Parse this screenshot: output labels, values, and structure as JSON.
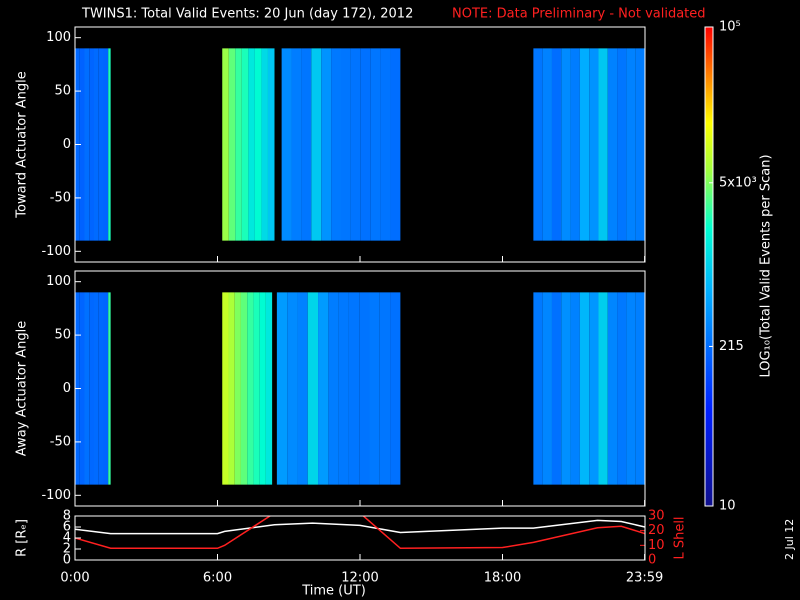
{
  "title": "TWINS1: Total Valid Events: 20 Jun (day 172), 2012",
  "note": "NOTE: Data Preliminary - Not validated",
  "stamp": "2 Jul 12",
  "xaxis": {
    "label": "Time (UT)",
    "lim": [
      0,
      24
    ],
    "ticks": [
      {
        "value": 0,
        "label": "0:00"
      },
      {
        "value": 6,
        "label": "6:00"
      },
      {
        "value": 12,
        "label": "12:00"
      },
      {
        "value": 18,
        "label": "18:00"
      },
      {
        "value": 23.983,
        "label": "23:59"
      }
    ]
  },
  "colorbar": {
    "label": "LOG₁₀(Total Valid Events per Scan)",
    "lim": [
      10,
      100000
    ],
    "log": true,
    "ticks": [
      {
        "value": 10,
        "label": "10"
      },
      {
        "value": 215,
        "label": "215"
      },
      {
        "value": 5000,
        "label": "5x10³"
      },
      {
        "value": 100000,
        "label": "10⁵"
      }
    ]
  },
  "chart_data": [
    {
      "type": "heatmap",
      "ylabel": "Toward Actuator Angle",
      "ylim": [
        -110,
        110
      ],
      "yticks": [
        -100,
        -50,
        0,
        50,
        100
      ],
      "segments": [
        {
          "start": 0,
          "end": 1.4,
          "angle_range": [
            -90,
            90
          ],
          "levels": [
            200,
            180,
            220,
            190,
            210,
            200,
            190
          ]
        },
        {
          "start": 1.4,
          "end": 1.5,
          "angle_range": [
            -90,
            90
          ],
          "levels": [
            2500
          ]
        },
        {
          "start": 6.2,
          "end": 8.4,
          "angle_range": [
            -90,
            90
          ],
          "levels": [
            6000,
            4000,
            3000,
            2500,
            1500,
            2000,
            1200,
            900
          ]
        },
        {
          "start": 8.7,
          "end": 13.7,
          "angle_range": [
            -90,
            90
          ],
          "levels": [
            350,
            280,
            250,
            900,
            400,
            260,
            250,
            240,
            230,
            250,
            240,
            220
          ]
        },
        {
          "start": 19.3,
          "end": 24,
          "angle_range": [
            -90,
            90
          ],
          "levels": [
            250,
            300,
            220,
            350,
            280,
            600,
            400,
            900,
            300,
            250,
            300,
            280
          ]
        }
      ]
    },
    {
      "type": "heatmap",
      "ylabel": "Away Actuator Angle",
      "ylim": [
        -110,
        110
      ],
      "yticks": [
        -100,
        -50,
        0,
        50,
        100
      ],
      "segments": [
        {
          "start": 0,
          "end": 1.4,
          "angle_range": [
            -90,
            90
          ],
          "levels": [
            200,
            190,
            230,
            200,
            210,
            200,
            190
          ]
        },
        {
          "start": 1.4,
          "end": 1.5,
          "angle_range": [
            -90,
            90
          ],
          "levels": [
            3000
          ]
        },
        {
          "start": 6.2,
          "end": 8.3,
          "angle_range": [
            -90,
            90
          ],
          "levels": [
            9000,
            7000,
            5000,
            4000,
            3000,
            2500,
            2000,
            1500
          ]
        },
        {
          "start": 8.5,
          "end": 13.7,
          "angle_range": [
            -90,
            90
          ],
          "levels": [
            450,
            350,
            300,
            1100,
            450,
            280,
            260,
            250,
            240,
            260,
            250,
            230
          ]
        },
        {
          "start": 19.3,
          "end": 24,
          "angle_range": [
            -90,
            90
          ],
          "levels": [
            260,
            320,
            230,
            380,
            300,
            700,
            420,
            1000,
            320,
            260,
            310,
            290
          ]
        }
      ]
    },
    {
      "type": "line",
      "ylabel": "R [Rₑ]",
      "y2label": "L Shell",
      "ylim": [
        0,
        8
      ],
      "yticks": [
        0,
        2,
        4,
        6,
        8
      ],
      "y2lim": [
        0,
        30
      ],
      "y2ticks": [
        0,
        10,
        20,
        30
      ],
      "x": [
        0,
        1.5,
        6,
        6.3,
        8.4,
        10,
        12,
        13.7,
        18,
        19.3,
        22,
        23,
        24
      ],
      "series": [
        {
          "name": "R",
          "color": "#ffffff",
          "values": [
            5.6,
            4.8,
            4.8,
            5.2,
            6.4,
            6.7,
            6.3,
            5.0,
            5.8,
            5.8,
            7.2,
            7.0,
            6.0
          ]
        },
        {
          "name": "L Shell",
          "color": "#ff2020",
          "axis": "y2",
          "values": [
            15,
            8,
            8,
            10,
            32,
            null,
            32,
            8,
            8.5,
            12,
            22,
            23,
            18
          ]
        }
      ]
    }
  ]
}
